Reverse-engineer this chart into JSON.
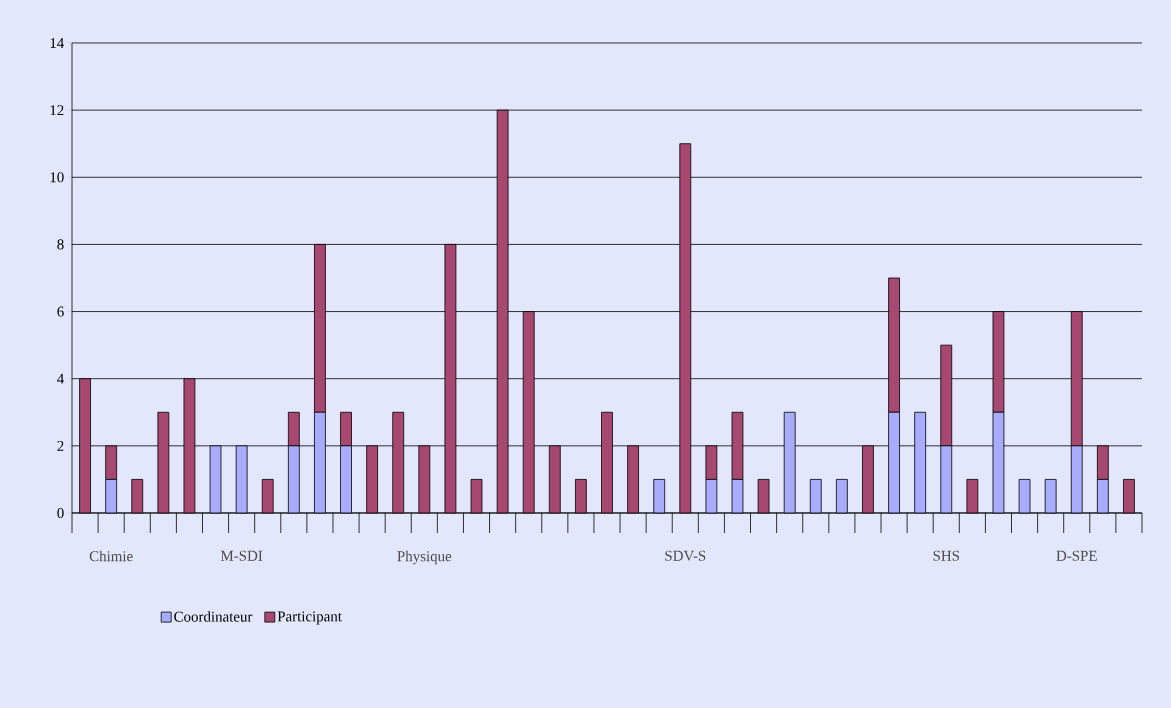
{
  "chart_data": {
    "type": "bar",
    "stacked": true,
    "categories": [
      null,
      "Chimie",
      null,
      null,
      null,
      null,
      "M-SDI",
      null,
      null,
      null,
      null,
      null,
      null,
      "Physique",
      null,
      null,
      null,
      null,
      null,
      null,
      null,
      null,
      null,
      "SDV-S",
      null,
      null,
      null,
      null,
      null,
      null,
      null,
      null,
      null,
      "SHS",
      null,
      null,
      null,
      null,
      "D-SPE",
      null,
      null
    ],
    "series": [
      {
        "name": "Coordinateur",
        "color": "#a8acfc",
        "values": [
          0,
          1,
          0,
          0,
          0,
          2,
          2,
          0,
          2,
          3,
          2,
          0,
          0,
          0,
          0,
          0,
          0,
          0,
          0,
          0,
          0,
          0,
          1,
          0,
          1,
          1,
          0,
          3,
          1,
          1,
          0,
          3,
          3,
          2,
          0,
          3,
          1,
          1,
          2,
          1,
          0
        ]
      },
      {
        "name": "Participant",
        "color": "#a64870",
        "values": [
          4,
          1,
          1,
          3,
          4,
          0,
          0,
          1,
          1,
          5,
          1,
          2,
          3,
          2,
          8,
          1,
          12,
          6,
          2,
          1,
          3,
          2,
          0,
          11,
          1,
          2,
          1,
          0,
          0,
          0,
          2,
          4,
          0,
          3,
          1,
          3,
          0,
          0,
          4,
          1,
          1
        ]
      }
    ],
    "ylim": [
      0,
      14
    ],
    "yticks": [
      0,
      2,
      4,
      6,
      8,
      10,
      12,
      14
    ],
    "grid": "y",
    "legend": "bottom left"
  }
}
